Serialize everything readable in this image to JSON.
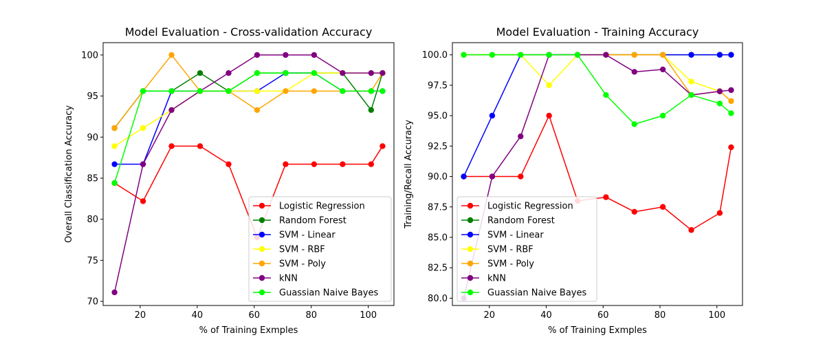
{
  "chart_data": [
    {
      "type": "line",
      "title": "Model Evaluation - Cross-validation Accuracy",
      "xlabel": "% of Training Exmples",
      "ylabel": "Overall Classification Accuracy",
      "xlim": [
        7,
        109
      ],
      "ylim": [
        69.5,
        101.5
      ],
      "xticks": [
        20,
        40,
        60,
        80,
        100
      ],
      "yticks": [
        70,
        75,
        80,
        85,
        90,
        95,
        100
      ],
      "grid": false,
      "legend_position": "lower-right",
      "x": [
        11,
        21,
        31,
        41,
        51,
        61,
        71,
        81,
        91,
        101,
        105
      ],
      "series": [
        {
          "name": "Logistic Regression",
          "color": "#ff0000",
          "values": [
            84.4,
            82.2,
            88.9,
            88.9,
            86.7,
            77.8,
            86.7,
            86.7,
            86.7,
            86.7,
            88.9
          ]
        },
        {
          "name": "Random Forest",
          "color": "#008000",
          "values": [
            91.1,
            95.6,
            95.6,
            97.8,
            95.6,
            97.8,
            97.8,
            97.8,
            97.8,
            93.3,
            97.8
          ]
        },
        {
          "name": "SVM - Linear",
          "color": "#0000ff",
          "values": [
            86.7,
            86.7,
            95.6,
            95.6,
            95.6,
            95.6,
            97.8,
            97.8,
            95.6,
            95.6,
            95.6
          ]
        },
        {
          "name": "SVM - RBF",
          "color": "#ffff00",
          "values": [
            88.9,
            91.1,
            93.3,
            95.6,
            95.6,
            95.6,
            95.6,
            97.8,
            97.8,
            97.8,
            97.8
          ]
        },
        {
          "name": "SVM - Poly",
          "color": "#ffa500",
          "values": [
            91.1,
            95.6,
            100.0,
            95.6,
            95.6,
            93.3,
            95.6,
            95.6,
            95.6,
            95.6,
            97.8
          ]
        },
        {
          "name": "kNN",
          "color": "#800080",
          "values": [
            71.1,
            86.7,
            93.3,
            95.6,
            97.8,
            100.0,
            100.0,
            100.0,
            97.8,
            97.8,
            97.8
          ]
        },
        {
          "name": "Guassian Naive Bayes",
          "color": "#00ff00",
          "values": [
            84.4,
            95.6,
            95.6,
            95.6,
            95.6,
            97.8,
            97.8,
            97.8,
            95.6,
            95.6,
            95.6
          ]
        }
      ]
    },
    {
      "type": "line",
      "title": "Model Evaluation - Training Accuracy",
      "xlabel": "% of Training Exmples",
      "ylabel": "Training/Recall Accuracy",
      "xlim": [
        7,
        109
      ],
      "ylim": [
        79.4,
        101.0
      ],
      "xticks": [
        20,
        40,
        60,
        80,
        100
      ],
      "yticks": [
        80.0,
        82.5,
        85.0,
        87.5,
        90.0,
        92.5,
        95.0,
        97.5,
        100.0
      ],
      "ytick_labels": [
        "80.0",
        "82.5",
        "85.0",
        "87.5",
        "90.0",
        "92.5",
        "95.0",
        "97.5",
        "100.0"
      ],
      "grid": false,
      "legend_position": "lower-left",
      "x": [
        11,
        21,
        31,
        41,
        51,
        61,
        71,
        81,
        91,
        101,
        105
      ],
      "series": [
        {
          "name": "Logistic Regression",
          "color": "#ff0000",
          "values": [
            90.0,
            90.0,
            90.0,
            95.0,
            88.0,
            88.3,
            87.1,
            87.5,
            85.6,
            87.0,
            92.4
          ]
        },
        {
          "name": "Random Forest",
          "color": "#008000",
          "values": [
            100.0,
            100.0,
            100.0,
            100.0,
            100.0,
            100.0,
            100.0,
            100.0,
            100.0,
            100.0,
            100.0
          ]
        },
        {
          "name": "SVM - Linear",
          "color": "#0000ff",
          "values": [
            90.0,
            95.0,
            100.0,
            100.0,
            100.0,
            100.0,
            100.0,
            100.0,
            100.0,
            100.0,
            100.0
          ]
        },
        {
          "name": "SVM - RBF",
          "color": "#ffff00",
          "values": [
            100.0,
            100.0,
            100.0,
            97.5,
            100.0,
            100.0,
            100.0,
            100.0,
            97.8,
            97.0,
            96.2
          ]
        },
        {
          "name": "SVM - Poly",
          "color": "#ffa500",
          "values": [
            100.0,
            100.0,
            100.0,
            100.0,
            100.0,
            100.0,
            100.0,
            100.0,
            96.7,
            97.0,
            96.2
          ]
        },
        {
          "name": "kNN",
          "color": "#800080",
          "values": [
            80.0,
            90.0,
            93.3,
            100.0,
            100.0,
            100.0,
            98.6,
            98.8,
            96.7,
            97.0,
            97.1
          ]
        },
        {
          "name": "Guassian Naive Bayes",
          "color": "#00ff00",
          "values": [
            100.0,
            100.0,
            100.0,
            100.0,
            100.0,
            96.7,
            94.3,
            95.0,
            96.7,
            96.0,
            95.2
          ]
        }
      ]
    }
  ]
}
